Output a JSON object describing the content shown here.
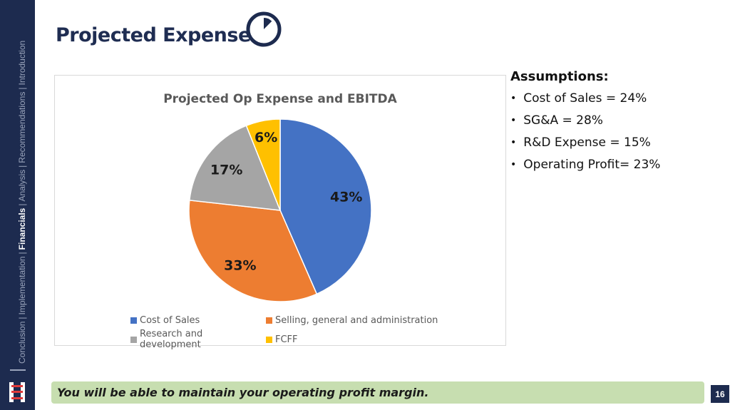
{
  "sidebar": {
    "nav": [
      "Conclusion",
      "Implementation",
      "Financials",
      "Analysis",
      "Recommendations",
      "Introduction"
    ],
    "current": "Financials",
    "colors": {
      "bg": "#1d2b4f",
      "text": "#9aa4bb",
      "current": "#ffffff"
    }
  },
  "slide": {
    "title": "Projected Expense",
    "title_icon": "pie-chart-icon",
    "page_number": "16"
  },
  "chart_data": {
    "type": "pie",
    "title": "Projected Op Expense and EBITDA",
    "categories": [
      "Cost of Sales",
      "Selling, general and administration",
      "Research and development",
      "FCFF"
    ],
    "values": [
      43,
      33,
      17,
      6
    ],
    "labels": [
      "43%",
      "33%",
      "17%",
      "6%"
    ],
    "colors": [
      "#4472c4",
      "#ed7d31",
      "#a5a5a5",
      "#ffc000"
    ],
    "legend_position": "bottom"
  },
  "assumptions": {
    "heading": "Assumptions:",
    "items": [
      "Cost of Sales = 24%",
      "SG&A = 28%",
      "R&D Expense = 15%",
      "Operating Profit= 23%"
    ]
  },
  "banner": {
    "text": "You will be able to maintain your operating profit margin.",
    "color": "#c7deb0"
  }
}
